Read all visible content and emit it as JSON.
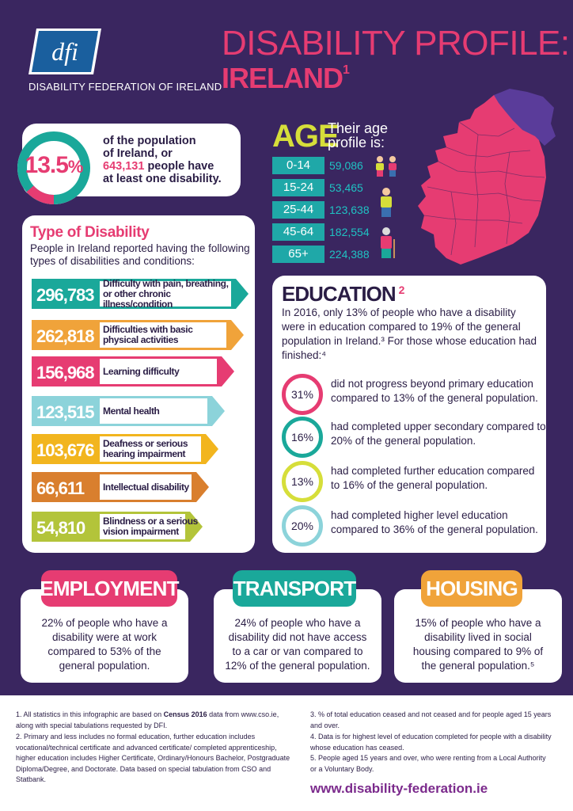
{
  "header": {
    "logo_text": "dfi",
    "org_name": "DISABILITY FEDERATION OF IRELAND",
    "title_line1": "DISABILITY PROFILE:",
    "title_line2": "IRELAND",
    "title_footnote": "1"
  },
  "population": {
    "percent": "13.5",
    "percent_symbol": "%",
    "percent_value": 13.5,
    "text1": "of the population",
    "text2": "of Ireland, or",
    "count": "643,131",
    "text3": "people have",
    "text4": "at least one disability."
  },
  "age": {
    "title": "AGE",
    "subtitle_line1": "Their age",
    "subtitle_line2": "profile is:",
    "rows": [
      {
        "range": "0-14",
        "value": "59,086"
      },
      {
        "range": "15-24",
        "value": "53,465"
      },
      {
        "range": "25-44",
        "value": "123,638"
      },
      {
        "range": "45-64",
        "value": "182,554"
      },
      {
        "range": "65+",
        "value": "224,388"
      }
    ]
  },
  "types": {
    "title": "Type of Disability",
    "intro": "People in Ireland reported having the following types of disabilities and conditions:",
    "items": [
      {
        "value": "296,783",
        "label": "Difficulty with pain, breathing, or other chronic illness/condition",
        "color": "#1aa89a"
      },
      {
        "value": "262,818",
        "label": "Difficulties with basic physical activities",
        "color": "#f0a33a"
      },
      {
        "value": "156,968",
        "label": "Learning difficulty",
        "color": "#e63c72"
      },
      {
        "value": "123,515",
        "label": "Mental health",
        "color": "#8cd3da"
      },
      {
        "value": "103,676",
        "label": "Deafness or serious hearing impairment",
        "color": "#f2b51e"
      },
      {
        "value": "66,611",
        "label": "Intellectual disability",
        "color": "#d97f2e"
      },
      {
        "value": "54,810",
        "label": "Blindness or a serious vision impairment",
        "color": "#b3c43a"
      }
    ]
  },
  "education": {
    "title": "EDUCATION",
    "footnote": "2",
    "intro": "In 2016, only 13% of people who have a disability were in education compared to 19% of the general population in Ireland.³ For those whose education had finished:⁴",
    "items": [
      {
        "percent": "31%",
        "text": "did not progress beyond primary education compared to 13% of the general population.",
        "color": "#e63c72"
      },
      {
        "percent": "16%",
        "text": "had completed upper secondary compared to 20% of the general population.",
        "color": "#1aa89a"
      },
      {
        "percent": "13%",
        "text": "had completed further education compared to 16% of the general population.",
        "color": "#d6de3a"
      },
      {
        "percent": "20%",
        "text": "had completed higher level education compared to 36% of the general population.",
        "color": "#8cd3da"
      }
    ]
  },
  "employment": {
    "title": "EMPLOYMENT",
    "text": "22% of people who have a disability were at work compared to 53% of the general population.",
    "color": "#e63c72"
  },
  "transport": {
    "title": "TRANSPORT",
    "text": "24% of people who have a disability did not have access to a car or van compared to 12% of the general population.",
    "color": "#1aa89a"
  },
  "housing": {
    "title": "HOUSING",
    "text": "15% of people who have a disability lived in social housing compared to 9% of the general population.⁵",
    "color": "#f0a33a"
  },
  "footnotes": {
    "f1a": "1. All statistics in this infographic are based on ",
    "f1b": "Census 2016",
    "f1c": " data from www.cso.ie, along with special tabulations requested by DFI.",
    "f2": "2. Primary and less includes no formal education, further education includes vocational/technical certificate and advanced certificate/ completed apprenticeship, higher education includes Higher Certificate, Ordinary/Honours Bachelor, Postgraduate Diploma/Degree, and Doctorate. Data based on special tabulation from CSO and Statbank.",
    "f3": "3. % of total education ceased and not ceased and for people aged 15 years and over.",
    "f4": "4. Data is for highest level of education completed for people with a disability whose education has ceased.",
    "f5": "5. People aged 15 years and over, who were renting from a Local Authority or a Voluntary Body.",
    "url": "www.disability-federation.ie"
  }
}
